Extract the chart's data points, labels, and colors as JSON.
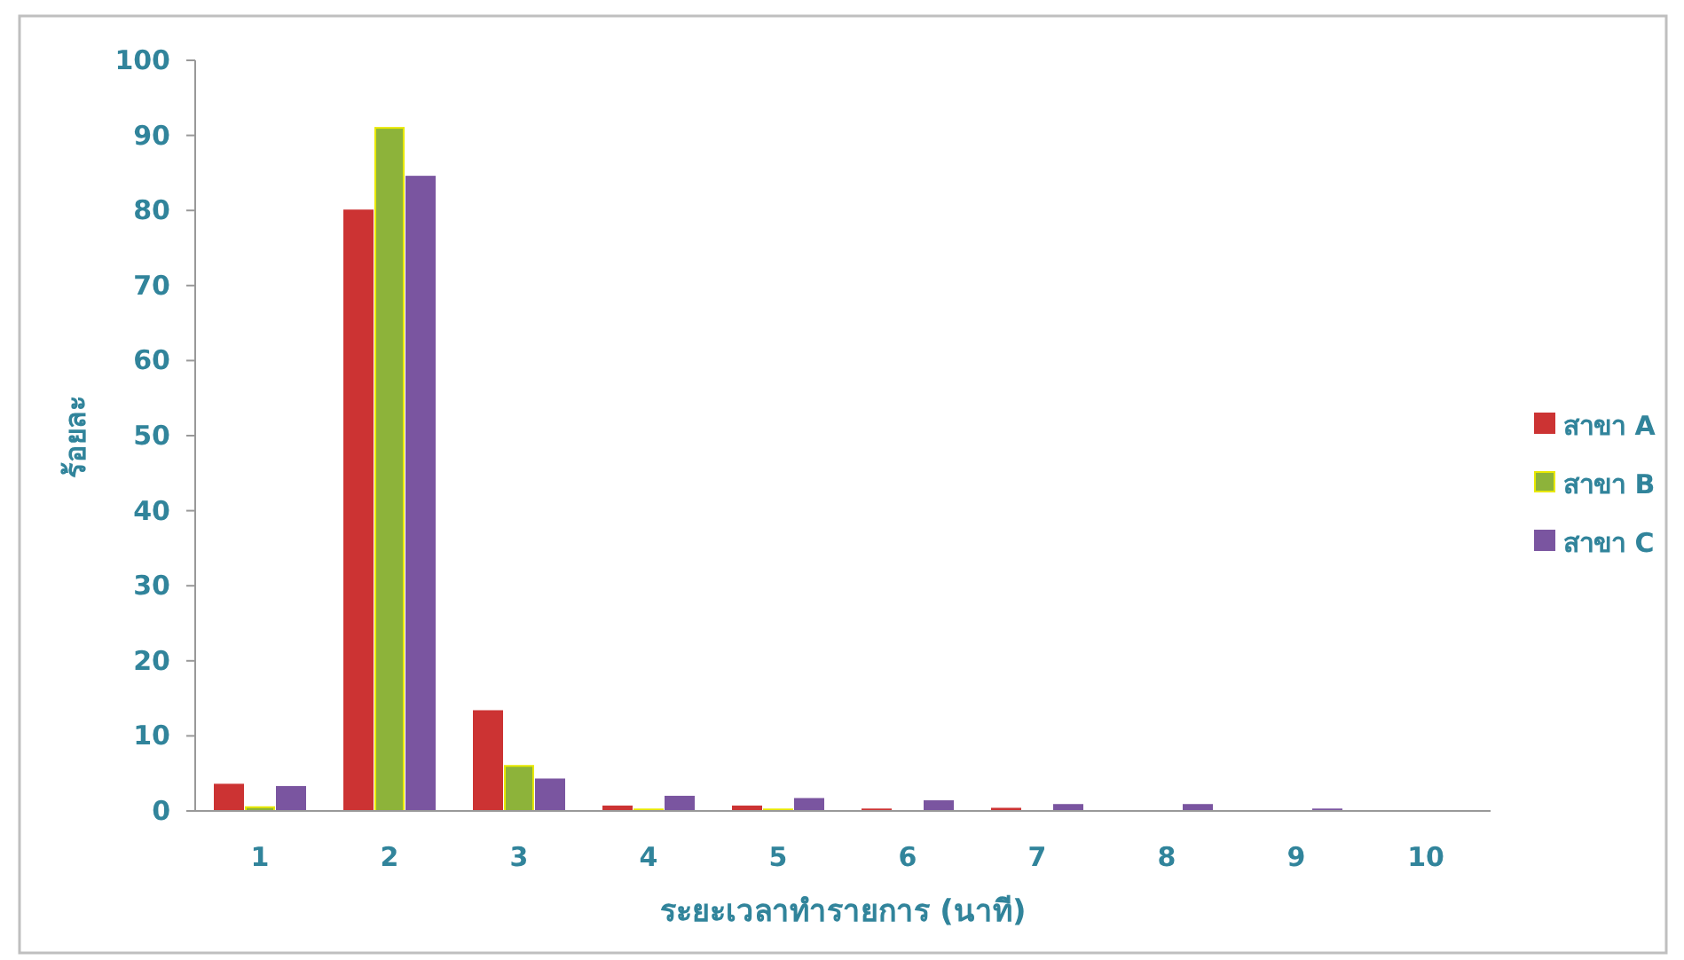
{
  "chart_data": {
    "type": "bar",
    "xlabel": "ระยะเวลาทำรายการ (นาที)",
    "ylabel": "ร้อยละ",
    "categories": [
      "1",
      "2",
      "3",
      "4",
      "5",
      "6",
      "7",
      "8",
      "9",
      "10"
    ],
    "series": [
      {
        "name": "สาขา A",
        "color": "#cc3333",
        "values": [
          3.5,
          80,
          13.3,
          0.6,
          0.6,
          0.2,
          0.3,
          0,
          0,
          0
        ]
      },
      {
        "name": "สาขา B",
        "color": "#8db33a",
        "values": [
          0.5,
          91,
          6,
          0.2,
          0.2,
          0,
          0,
          0,
          0,
          0
        ]
      },
      {
        "name": "สาขา C",
        "color": "#7a55a0",
        "values": [
          3.2,
          84.5,
          4.2,
          1.9,
          1.6,
          1.3,
          0.8,
          0.8,
          0.2,
          0
        ]
      }
    ],
    "ylim": [
      0,
      100
    ],
    "yticks": [
      0,
      10,
      20,
      30,
      40,
      50,
      60,
      70,
      80,
      90,
      100
    ],
    "grid": false,
    "legend": "right"
  }
}
